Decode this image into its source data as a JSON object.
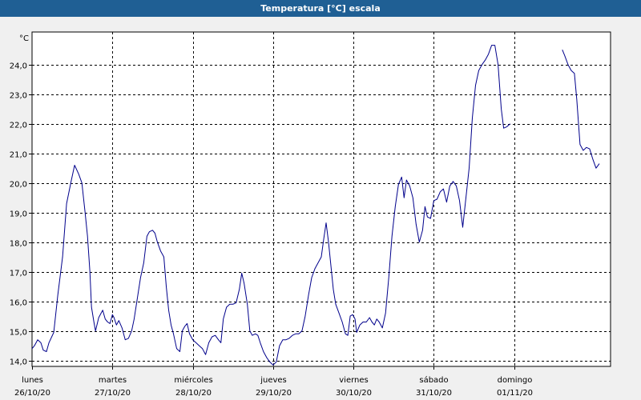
{
  "window": {
    "title": "Temperatura [°C] escala"
  },
  "chart_data": {
    "type": "line",
    "title": "Temperatura [°C] escala",
    "ylabel": "°C",
    "xlabel": "",
    "ylim": [
      13.8,
      25.1
    ],
    "yticks": [
      14.0,
      15.0,
      16.0,
      17.0,
      18.0,
      19.0,
      20.0,
      21.0,
      22.0,
      23.0,
      24.0
    ],
    "ytick_labels": [
      "14,0",
      "15,0",
      "16,0",
      "17,0",
      "18,0",
      "19,0",
      "20,0",
      "21,0",
      "22,0",
      "23,0",
      "24,0"
    ],
    "xlim": [
      0,
      7.2
    ],
    "xticks": [
      {
        "x": 0,
        "day": "lunes",
        "date": "26/10/20"
      },
      {
        "x": 1,
        "day": "martes",
        "date": "27/10/20"
      },
      {
        "x": 2,
        "day": "miércoles",
        "date": "28/10/20"
      },
      {
        "x": 3,
        "day": "jueves",
        "date": "29/10/20"
      },
      {
        "x": 4,
        "day": "viernes",
        "date": "30/10/20"
      },
      {
        "x": 5,
        "day": "sábado",
        "date": "31/10/20"
      },
      {
        "x": 6,
        "day": "domingo",
        "date": "01/11/20"
      }
    ],
    "grid": true,
    "color": "#00008b",
    "series": [
      {
        "segments": [
          [
            [
              0.0,
              14.4
            ],
            [
              0.03,
              14.5
            ],
            [
              0.07,
              14.7
            ],
            [
              0.11,
              14.6
            ],
            [
              0.14,
              14.35
            ],
            [
              0.18,
              14.3
            ],
            [
              0.21,
              14.6
            ],
            [
              0.27,
              14.95
            ],
            [
              0.32,
              16.2
            ],
            [
              0.38,
              17.5
            ],
            [
              0.43,
              19.3
            ],
            [
              0.49,
              20.1
            ],
            [
              0.53,
              20.6
            ],
            [
              0.58,
              20.3
            ],
            [
              0.62,
              20.0
            ],
            [
              0.66,
              19.0
            ],
            [
              0.69,
              18.2
            ],
            [
              0.72,
              17.0
            ],
            [
              0.74,
              15.8
            ],
            [
              0.77,
              15.3
            ],
            [
              0.79,
              15.0
            ],
            [
              0.83,
              15.45
            ],
            [
              0.86,
              15.6
            ],
            [
              0.88,
              15.7
            ],
            [
              0.91,
              15.4
            ],
            [
              0.94,
              15.3
            ],
            [
              0.97,
              15.25
            ],
            [
              1.0,
              15.55
            ],
            [
              1.02,
              15.45
            ],
            [
              1.05,
              15.2
            ],
            [
              1.08,
              15.35
            ],
            [
              1.12,
              15.1
            ],
            [
              1.16,
              14.7
            ],
            [
              1.2,
              14.75
            ],
            [
              1.24,
              15.0
            ],
            [
              1.27,
              15.4
            ],
            [
              1.31,
              16.1
            ],
            [
              1.35,
              16.8
            ],
            [
              1.39,
              17.3
            ],
            [
              1.43,
              18.2
            ],
            [
              1.46,
              18.35
            ],
            [
              1.5,
              18.4
            ],
            [
              1.53,
              18.3
            ],
            [
              1.56,
              18.0
            ],
            [
              1.6,
              17.7
            ],
            [
              1.64,
              17.5
            ],
            [
              1.67,
              16.5
            ],
            [
              1.7,
              15.7
            ],
            [
              1.73,
              15.2
            ],
            [
              1.76,
              14.9
            ],
            [
              1.8,
              14.4
            ],
            [
              1.84,
              14.3
            ],
            [
              1.87,
              15.0
            ],
            [
              1.9,
              15.15
            ],
            [
              1.93,
              15.25
            ],
            [
              1.96,
              14.9
            ],
            [
              2.0,
              14.7
            ],
            [
              2.04,
              14.6
            ],
            [
              2.08,
              14.5
            ],
            [
              2.12,
              14.4
            ],
            [
              2.16,
              14.2
            ],
            [
              2.2,
              14.6
            ],
            [
              2.24,
              14.8
            ],
            [
              2.28,
              14.85
            ],
            [
              2.32,
              14.7
            ],
            [
              2.35,
              14.6
            ],
            [
              2.38,
              15.4
            ],
            [
              2.42,
              15.8
            ],
            [
              2.46,
              15.9
            ],
            [
              2.5,
              15.9
            ],
            [
              2.54,
              15.95
            ],
            [
              2.58,
              16.4
            ],
            [
              2.61,
              16.95
            ],
            [
              2.64,
              16.6
            ],
            [
              2.68,
              15.9
            ],
            [
              2.71,
              15.0
            ],
            [
              2.74,
              14.85
            ],
            [
              2.78,
              14.9
            ],
            [
              2.81,
              14.85
            ],
            [
              2.84,
              14.6
            ],
            [
              2.88,
              14.3
            ],
            [
              2.92,
              14.1
            ],
            [
              2.96,
              13.95
            ],
            [
              3.0,
              13.85
            ],
            [
              3.04,
              13.95
            ],
            [
              3.08,
              14.5
            ],
            [
              3.12,
              14.7
            ],
            [
              3.16,
              14.7
            ],
            [
              3.2,
              14.75
            ],
            [
              3.24,
              14.85
            ],
            [
              3.28,
              14.9
            ],
            [
              3.32,
              14.9
            ],
            [
              3.36,
              15.0
            ],
            [
              3.4,
              15.5
            ],
            [
              3.44,
              16.2
            ],
            [
              3.48,
              16.8
            ],
            [
              3.52,
              17.1
            ],
            [
              3.56,
              17.3
            ],
            [
              3.6,
              17.5
            ],
            [
              3.63,
              18.1
            ],
            [
              3.66,
              18.65
            ],
            [
              3.69,
              18.0
            ],
            [
              3.72,
              17.2
            ],
            [
              3.75,
              16.4
            ],
            [
              3.78,
              15.9
            ],
            [
              3.82,
              15.6
            ],
            [
              3.86,
              15.3
            ],
            [
              3.9,
              14.9
            ],
            [
              3.93,
              14.85
            ],
            [
              3.96,
              15.5
            ],
            [
              3.99,
              15.55
            ],
            [
              4.02,
              15.4
            ],
            [
              4.04,
              14.95
            ],
            [
              4.08,
              15.2
            ],
            [
              4.12,
              15.3
            ],
            [
              4.16,
              15.3
            ],
            [
              4.2,
              15.45
            ],
            [
              4.23,
              15.3
            ],
            [
              4.26,
              15.2
            ],
            [
              4.29,
              15.4
            ],
            [
              4.32,
              15.3
            ],
            [
              4.36,
              15.1
            ],
            [
              4.4,
              15.6
            ],
            [
              4.44,
              16.8
            ],
            [
              4.48,
              18.2
            ],
            [
              4.52,
              19.2
            ],
            [
              4.56,
              19.95
            ],
            [
              4.6,
              20.2
            ],
            [
              4.63,
              19.5
            ],
            [
              4.66,
              20.1
            ],
            [
              4.7,
              19.9
            ],
            [
              4.74,
              19.5
            ],
            [
              4.78,
              18.6
            ],
            [
              4.82,
              18.0
            ],
            [
              4.86,
              18.4
            ],
            [
              4.89,
              19.2
            ],
            [
              4.92,
              18.85
            ],
            [
              4.96,
              18.8
            ],
            [
              5.0,
              19.4
            ],
            [
              5.04,
              19.45
            ],
            [
              5.08,
              19.7
            ],
            [
              5.12,
              19.8
            ],
            [
              5.16,
              19.35
            ],
            [
              5.2,
              19.9
            ],
            [
              5.24,
              20.05
            ],
            [
              5.28,
              19.9
            ],
            [
              5.32,
              19.4
            ],
            [
              5.36,
              18.5
            ],
            [
              5.4,
              19.5
            ],
            [
              5.44,
              20.5
            ],
            [
              5.48,
              22.2
            ],
            [
              5.52,
              23.3
            ],
            [
              5.56,
              23.8
            ],
            [
              5.6,
              24.0
            ],
            [
              5.64,
              24.15
            ],
            [
              5.68,
              24.35
            ],
            [
              5.72,
              24.65
            ],
            [
              5.76,
              24.65
            ],
            [
              5.8,
              24.0
            ],
            [
              5.84,
              22.5
            ],
            [
              5.87,
              21.85
            ],
            [
              5.91,
              21.9
            ],
            [
              5.95,
              22.0
            ]
          ],
          [
            [
              6.6,
              24.5
            ],
            [
              6.63,
              24.3
            ],
            [
              6.67,
              24.0
            ],
            [
              6.71,
              23.8
            ],
            [
              6.75,
              23.7
            ],
            [
              6.78,
              22.8
            ],
            [
              6.82,
              21.3
            ],
            [
              6.86,
              21.1
            ],
            [
              6.9,
              21.2
            ],
            [
              6.94,
              21.15
            ],
            [
              6.98,
              20.8
            ],
            [
              7.02,
              20.5
            ],
            [
              7.06,
              20.65
            ]
          ]
        ]
      }
    ]
  }
}
